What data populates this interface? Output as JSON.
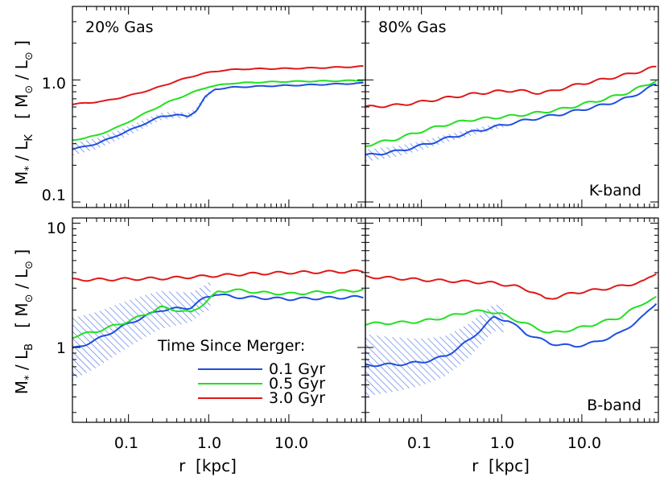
{
  "chart_data": [
    {
      "type": "line",
      "panel": "top-left",
      "annotation": "20% Gas",
      "xscale": "log",
      "yscale": "log",
      "xlim": [
        0.02,
        90
      ],
      "ylim": [
        0.09,
        4.0
      ],
      "ylabel_lines": [
        "M",
        "*",
        " / L",
        "K",
        "   [ M",
        "⊙",
        " / L",
        "⊙",
        " ]"
      ],
      "ytick_labels": [
        "0.1",
        "1.0"
      ],
      "ytick_values": [
        0.1,
        1.0
      ],
      "series": [
        {
          "name": "0.1 Gyr",
          "color": "#1f4fe0",
          "x": [
            0.02,
            0.04,
            0.08,
            0.15,
            0.25,
            0.4,
            0.55,
            0.7,
            0.9,
            1.2,
            2,
            5,
            10,
            30,
            85
          ],
          "y": [
            0.27,
            0.3,
            0.36,
            0.43,
            0.5,
            0.52,
            0.5,
            0.56,
            0.72,
            0.84,
            0.87,
            0.89,
            0.9,
            0.92,
            0.94
          ]
        },
        {
          "name": "0.5 Gyr",
          "color": "#22e022",
          "x": [
            0.02,
            0.04,
            0.08,
            0.15,
            0.3,
            0.6,
            1.0,
            2,
            5,
            10,
            30,
            85
          ],
          "y": [
            0.32,
            0.35,
            0.42,
            0.52,
            0.65,
            0.78,
            0.88,
            0.94,
            0.96,
            0.97,
            0.98,
            0.99
          ]
        },
        {
          "name": "3.0 Gyr",
          "color": "#e01818",
          "x": [
            0.02,
            0.05,
            0.1,
            0.2,
            0.4,
            0.8,
            1.5,
            3,
            10,
            30,
            85
          ],
          "y": [
            0.63,
            0.67,
            0.74,
            0.84,
            0.98,
            1.12,
            1.2,
            1.23,
            1.24,
            1.26,
            1.29
          ]
        }
      ]
    },
    {
      "type": "line",
      "panel": "top-right",
      "annotation": "80% Gas",
      "band": "K-band",
      "xscale": "log",
      "yscale": "log",
      "xlim": [
        0.02,
        90
      ],
      "ylim": [
        0.09,
        4.0
      ],
      "series": [
        {
          "name": "0.1 Gyr",
          "color": "#1f4fe0",
          "x": [
            0.02,
            0.05,
            0.1,
            0.2,
            0.4,
            0.8,
            1.5,
            3,
            6,
            10,
            20,
            40,
            85
          ],
          "y": [
            0.24,
            0.26,
            0.29,
            0.33,
            0.37,
            0.41,
            0.45,
            0.49,
            0.53,
            0.57,
            0.63,
            0.72,
            0.92
          ]
        },
        {
          "name": "0.5 Gyr",
          "color": "#22e022",
          "x": [
            0.02,
            0.05,
            0.1,
            0.2,
            0.4,
            0.8,
            1.5,
            3,
            6,
            10,
            20,
            40,
            85
          ],
          "y": [
            0.29,
            0.33,
            0.38,
            0.43,
            0.47,
            0.49,
            0.51,
            0.54,
            0.58,
            0.63,
            0.7,
            0.8,
            0.99
          ]
        },
        {
          "name": "3.0 Gyr",
          "color": "#e01818",
          "x": [
            0.02,
            0.05,
            0.1,
            0.2,
            0.4,
            0.8,
            1.5,
            3,
            4,
            6,
            10,
            20,
            40,
            85
          ],
          "y": [
            0.6,
            0.62,
            0.66,
            0.71,
            0.76,
            0.8,
            0.82,
            0.78,
            0.8,
            0.86,
            0.93,
            1.02,
            1.12,
            1.28
          ]
        }
      ]
    },
    {
      "type": "line",
      "panel": "bottom-left",
      "xscale": "log",
      "yscale": "log",
      "xlim": [
        0.02,
        90
      ],
      "ylim": [
        0.25,
        11.0
      ],
      "ylabel_lines": [
        "M",
        "*",
        " / L",
        "B",
        "   [ M",
        "⊙",
        " / L",
        "⊙",
        " ]"
      ],
      "xlabel": "r  [kpc]",
      "xtick_labels": [
        "0.1",
        "1.0",
        "10.0"
      ],
      "xtick_values": [
        0.1,
        1.0,
        10.0
      ],
      "ytick_labels": [
        "1",
        "10"
      ],
      "ytick_values": [
        1,
        10
      ],
      "legend_title": "Time Since Merger:",
      "legend_placement": "bottom-right",
      "series": [
        {
          "name": "0.1 Gyr",
          "color": "#1f4fe0",
          "x": [
            0.02,
            0.04,
            0.08,
            0.15,
            0.25,
            0.4,
            0.6,
            0.9,
            1.2,
            2,
            5,
            10,
            30,
            85
          ],
          "y": [
            0.97,
            1.15,
            1.45,
            1.75,
            2.0,
            2.05,
            2.1,
            2.5,
            2.7,
            2.55,
            2.5,
            2.45,
            2.5,
            2.55
          ]
        },
        {
          "name": "0.5 Gyr",
          "color": "#22e022",
          "x": [
            0.02,
            0.04,
            0.08,
            0.15,
            0.25,
            0.4,
            0.6,
            0.9,
            1.3,
            2,
            5,
            10,
            30,
            85
          ],
          "y": [
            1.22,
            1.35,
            1.55,
            1.8,
            2.1,
            2.0,
            1.9,
            2.3,
            2.8,
            2.9,
            2.75,
            2.7,
            2.8,
            2.9
          ]
        },
        {
          "name": "3.0 Gyr",
          "color": "#e01818",
          "x": [
            0.02,
            0.05,
            0.1,
            0.3,
            1,
            3,
            10,
            30,
            85
          ],
          "y": [
            3.5,
            3.52,
            3.55,
            3.6,
            3.75,
            3.9,
            4.0,
            4.05,
            4.1
          ]
        }
      ]
    },
    {
      "type": "line",
      "panel": "bottom-right",
      "band": "B-band",
      "xscale": "log",
      "yscale": "log",
      "xlim": [
        0.02,
        90
      ],
      "ylim": [
        0.25,
        11.0
      ],
      "xlabel": "r  [kpc]",
      "xtick_labels": [
        "0.1",
        "1.0",
        "10.0"
      ],
      "xtick_values": [
        0.1,
        1.0,
        10.0
      ],
      "series": [
        {
          "name": "0.1 Gyr",
          "color": "#1f4fe0",
          "x": [
            0.02,
            0.05,
            0.1,
            0.2,
            0.4,
            0.8,
            1.2,
            2,
            4,
            8,
            15,
            30,
            60,
            85
          ],
          "y": [
            0.72,
            0.73,
            0.76,
            0.85,
            1.15,
            1.75,
            1.65,
            1.3,
            1.08,
            1.02,
            1.1,
            1.3,
            1.8,
            2.3
          ]
        },
        {
          "name": "0.5 Gyr",
          "color": "#22e022",
          "x": [
            0.02,
            0.05,
            0.1,
            0.2,
            0.4,
            0.7,
            1.0,
            2,
            4,
            8,
            15,
            30,
            60,
            85
          ],
          "y": [
            1.55,
            1.58,
            1.62,
            1.75,
            1.95,
            1.95,
            1.85,
            1.55,
            1.3,
            1.4,
            1.55,
            1.75,
            2.3,
            2.5
          ]
        },
        {
          "name": "3.0 Gyr",
          "color": "#e01818",
          "x": [
            0.02,
            0.05,
            0.1,
            0.3,
            0.8,
            1.5,
            2.5,
            3.5,
            5,
            8,
            15,
            30,
            60,
            85
          ],
          "y": [
            3.7,
            3.6,
            3.5,
            3.4,
            3.3,
            3.1,
            2.8,
            2.45,
            2.55,
            2.75,
            2.9,
            3.1,
            3.4,
            4.0
          ]
        }
      ]
    }
  ]
}
